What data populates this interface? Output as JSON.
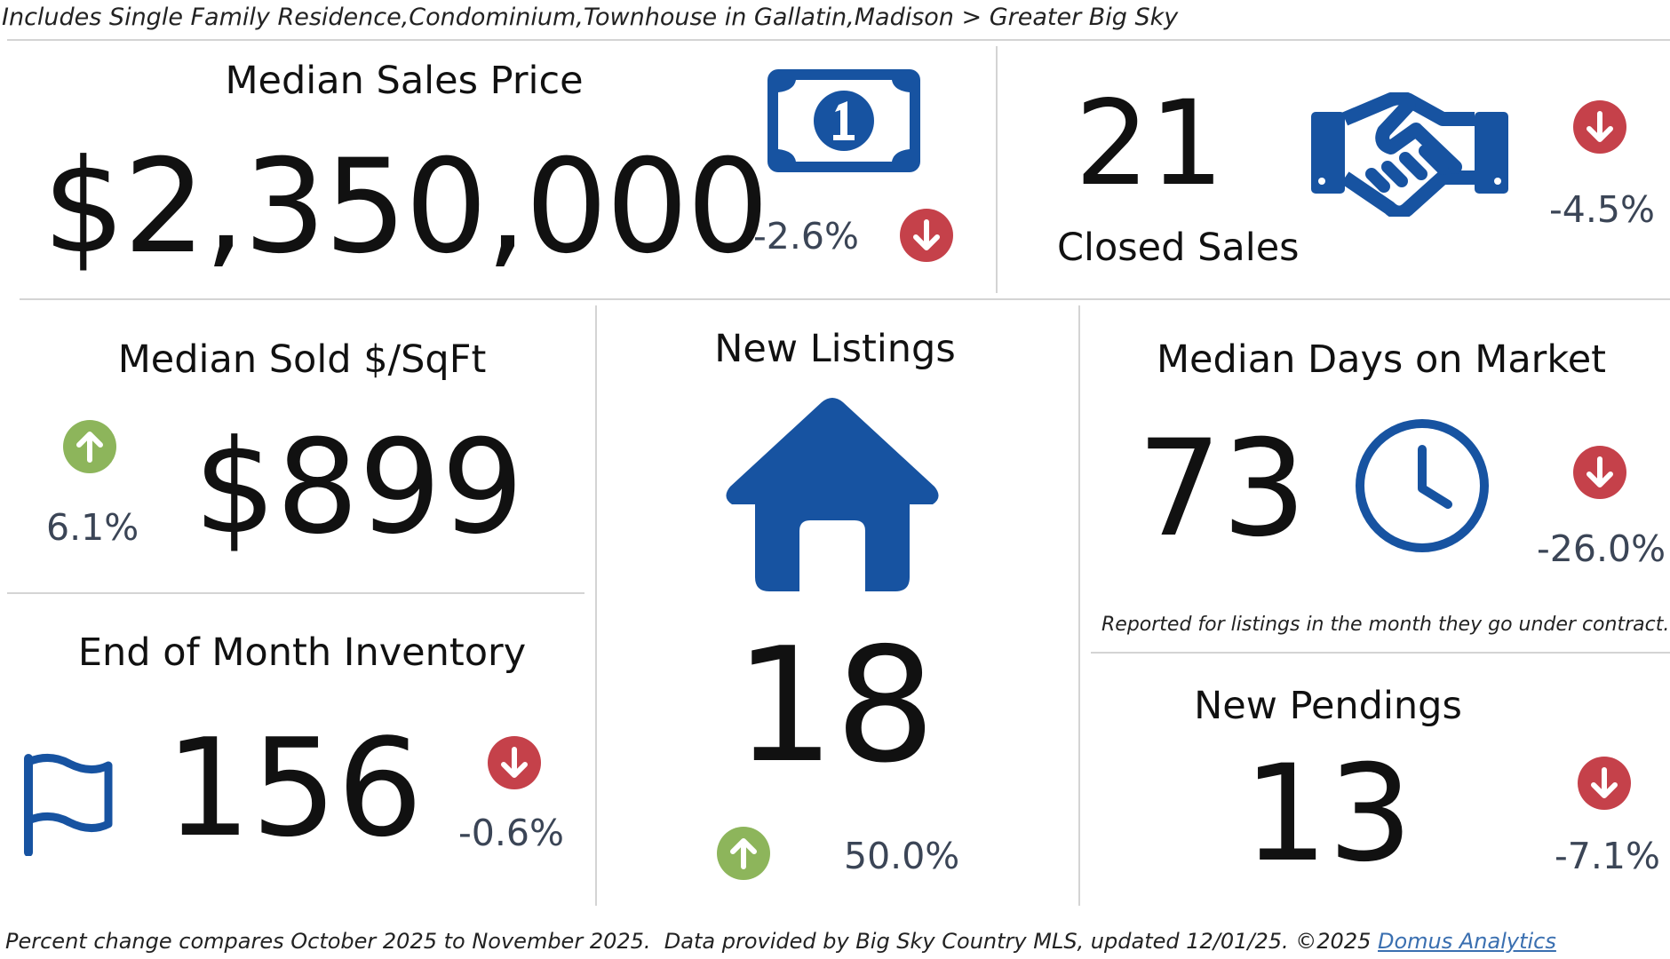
{
  "header": {
    "filter_text": "Includes Single Family Residence,Condominium,Townhouse in Gallatin,Madison > Greater Big Sky"
  },
  "colors": {
    "brand_blue": "#1753a1",
    "down_red": "#c5414a",
    "up_green": "#8db55b",
    "pct_text": "#3b4556",
    "divider": "#d4d4d4"
  },
  "median_sales_price": {
    "title": "Median Sales Price",
    "value": "$2,350,000",
    "change": "-2.6%",
    "direction": "down",
    "icon": "dollar-bill-icon"
  },
  "closed_sales": {
    "title": "Closed Sales",
    "value": "21",
    "change": "-4.5%",
    "direction": "down",
    "icon": "handshake-icon"
  },
  "median_sold_sqft": {
    "title": "Median Sold $/SqFt",
    "value": "$899",
    "change": "6.1%",
    "direction": "up"
  },
  "new_listings": {
    "title": "New Listings",
    "value": "18",
    "change": "50.0%",
    "direction": "up",
    "icon": "house-icon"
  },
  "median_days_on_market": {
    "title": "Median Days on Market",
    "value": "73",
    "change": "-26.0%",
    "direction": "down",
    "icon": "clock-icon",
    "note": "Reported for listings in the month they go under contract."
  },
  "end_of_month_inventory": {
    "title": "End of Month Inventory",
    "value": "156",
    "change": "-0.6%",
    "direction": "down",
    "icon": "flag-icon"
  },
  "new_pendings": {
    "title": "New Pendings",
    "value": "13",
    "change": "-7.1%",
    "direction": "down"
  },
  "footer": {
    "text": "Percent change compares October 2025 to November 2025.  Data provided by Big Sky Country MLS, updated 12/01/25. ©2025 ",
    "link_label": "Domus Analytics"
  }
}
